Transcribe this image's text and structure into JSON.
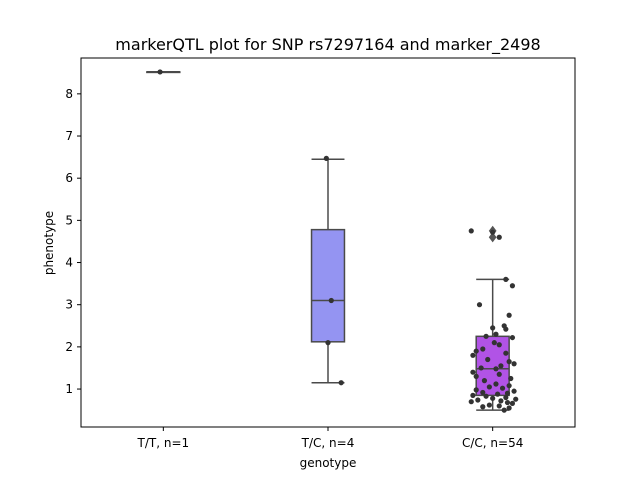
{
  "chart_data": {
    "type": "box",
    "title": "markerQTL plot for SNP rs7297164 and marker_2498",
    "xlabel": "genotype",
    "ylabel": "phenotype",
    "ylim": [
      0.1,
      8.85
    ],
    "yticks": [
      1,
      2,
      3,
      4,
      5,
      6,
      7,
      8
    ],
    "grid": false,
    "legend": "none",
    "categories": [
      "T/T, n=1",
      "T/C, n=4",
      "C/C, n=54"
    ],
    "boxes": [
      {
        "category": "T/T, n=1",
        "color": "#3b4cc0",
        "q1": 8.52,
        "median": 8.52,
        "q3": 8.52,
        "whisker_low": 8.52,
        "whisker_high": 8.52,
        "outliers": [],
        "points": [
          [
            -0.02,
            8.52
          ]
        ]
      },
      {
        "category": "T/C, n=4",
        "color": "#9494f2",
        "q1": 2.12,
        "median": 3.1,
        "q3": 4.78,
        "whisker_low": 1.15,
        "whisker_high": 6.45,
        "outliers": [],
        "points": [
          [
            -0.01,
            6.47
          ],
          [
            0.02,
            3.1
          ],
          [
            0.08,
            1.15
          ],
          [
            0.0,
            2.1
          ]
        ]
      },
      {
        "category": "C/C, n=54",
        "color": "#b153e6",
        "q1": 0.85,
        "median": 1.48,
        "q3": 2.25,
        "whisker_low": 0.5,
        "whisker_high": 3.6,
        "outliers": [
          4.75,
          4.6
        ],
        "points": [
          [
            -0.13,
            4.75
          ],
          [
            0.04,
            4.6
          ],
          [
            0.0,
            4.72
          ],
          [
            0.08,
            3.6
          ],
          [
            0.12,
            3.45
          ],
          [
            -0.08,
            3.0
          ],
          [
            0.1,
            2.75
          ],
          [
            0.07,
            2.5
          ],
          [
            0.08,
            2.42
          ],
          [
            0.0,
            2.45
          ],
          [
            0.02,
            2.3
          ],
          [
            -0.04,
            2.25
          ],
          [
            0.12,
            2.22
          ],
          [
            0.01,
            2.1
          ],
          [
            0.04,
            2.05
          ],
          [
            -0.1,
            1.9
          ],
          [
            -0.06,
            1.95
          ],
          [
            0.08,
            1.85
          ],
          [
            -0.12,
            1.8
          ],
          [
            -0.03,
            1.7
          ],
          [
            0.1,
            1.65
          ],
          [
            0.13,
            1.6
          ],
          [
            0.05,
            1.55
          ],
          [
            -0.07,
            1.5
          ],
          [
            0.02,
            1.48
          ],
          [
            -0.12,
            1.4
          ],
          [
            0.04,
            1.35
          ],
          [
            -0.1,
            1.3
          ],
          [
            0.11,
            1.25
          ],
          [
            -0.05,
            1.2
          ],
          [
            0.02,
            1.12
          ],
          [
            0.1,
            1.08
          ],
          [
            -0.02,
            1.05
          ],
          [
            0.06,
            1.02
          ],
          [
            -0.1,
            0.98
          ],
          [
            0.13,
            0.95
          ],
          [
            -0.06,
            0.92
          ],
          [
            0.09,
            0.9
          ],
          [
            0.03,
            0.88
          ],
          [
            -0.12,
            0.85
          ],
          [
            -0.04,
            0.83
          ],
          [
            0.08,
            0.8
          ],
          [
            0.0,
            0.78
          ],
          [
            0.14,
            0.76
          ],
          [
            -0.09,
            0.74
          ],
          [
            0.05,
            0.72
          ],
          [
            -0.13,
            0.7
          ],
          [
            0.09,
            0.68
          ],
          [
            0.12,
            0.66
          ],
          [
            -0.02,
            0.62
          ],
          [
            0.04,
            0.6
          ],
          [
            -0.06,
            0.58
          ],
          [
            0.1,
            0.55
          ],
          [
            0.07,
            0.5
          ]
        ]
      }
    ]
  }
}
